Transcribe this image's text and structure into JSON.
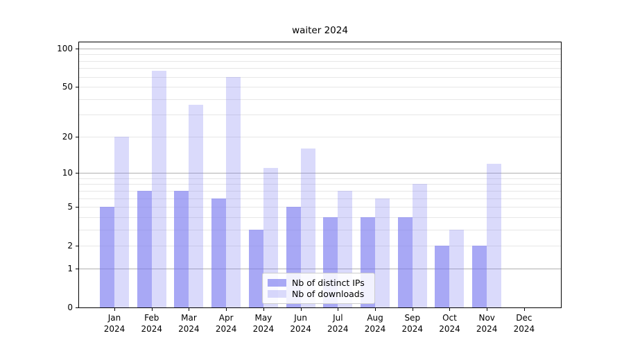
{
  "title": "waiter 2024",
  "colors": {
    "bar_base": "#7a7af0",
    "distinct_ips_fill": "rgba(122,122,240,0.65)",
    "downloads_fill": "rgba(122,122,240,0.28)",
    "distinct_ips_hex_on_white": "#a9a9f5",
    "downloads_hex_on_white": "#dadafb",
    "grid_major": "#b0b0b0",
    "grid_minor": "#e7e7e7",
    "axis": "#000000",
    "text": "#000000",
    "legend_border": "#cccccc"
  },
  "y_axis": {
    "scale": "log1p",
    "ticks": [
      {
        "value": 100,
        "label": "100"
      },
      {
        "value": 50,
        "label": "50"
      },
      {
        "value": 20,
        "label": "20"
      },
      {
        "value": 10,
        "label": "10"
      },
      {
        "value": 5,
        "label": "5"
      },
      {
        "value": 2,
        "label": "2"
      },
      {
        "value": 1,
        "label": "1"
      },
      {
        "value": 0,
        "label": "0"
      }
    ],
    "major_gridlines": [
      1,
      10,
      100
    ],
    "minor_gridlines": [
      2,
      3,
      4,
      5,
      6,
      7,
      8,
      9,
      20,
      30,
      40,
      50,
      60,
      70,
      80,
      90
    ]
  },
  "chart_data": {
    "type": "bar",
    "title": "waiter 2024",
    "y_scale": "log1p",
    "ylim": [
      0,
      113
    ],
    "y_ticks": [
      0,
      1,
      2,
      5,
      10,
      20,
      50,
      100
    ],
    "grid": true,
    "legend_position": "lower center",
    "categories": [
      {
        "month": "Jan",
        "year": "2024"
      },
      {
        "month": "Feb",
        "year": "2024"
      },
      {
        "month": "Mar",
        "year": "2024"
      },
      {
        "month": "Apr",
        "year": "2024"
      },
      {
        "month": "May",
        "year": "2024"
      },
      {
        "month": "Jun",
        "year": "2024"
      },
      {
        "month": "Jul",
        "year": "2024"
      },
      {
        "month": "Aug",
        "year": "2024"
      },
      {
        "month": "Sep",
        "year": "2024"
      },
      {
        "month": "Oct",
        "year": "2024"
      },
      {
        "month": "Nov",
        "year": "2024"
      },
      {
        "month": "Dec",
        "year": "2024"
      }
    ],
    "series": [
      {
        "name": "Nb of distinct IPs",
        "values": [
          5,
          7,
          7,
          6,
          3,
          5,
          4,
          4,
          4,
          2,
          2,
          0
        ]
      },
      {
        "name": "Nb of downloads",
        "values": [
          20,
          67,
          36,
          60,
          11,
          16,
          7,
          6,
          8,
          3,
          12,
          0
        ]
      }
    ]
  }
}
